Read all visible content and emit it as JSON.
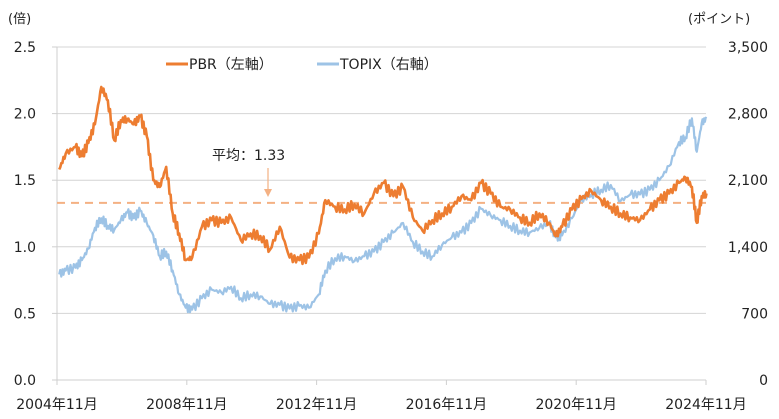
{
  "chart_data": {
    "type": "line",
    "title": "",
    "left_axis": {
      "unit_label": "(倍)",
      "ylim": [
        0,
        2.5
      ],
      "ticks": [
        "0.0",
        "0.5",
        "1.0",
        "1.5",
        "2.0",
        "2.5"
      ]
    },
    "right_axis": {
      "unit_label": "(ポイント)",
      "ylim": [
        0,
        3500
      ],
      "ticks": [
        "0",
        "700",
        "1,400",
        "2,100",
        "2,800",
        "3,500"
      ]
    },
    "x_axis": {
      "range": [
        "2004-11",
        "2024-11"
      ],
      "tick_labels": [
        "2004年11月",
        "2008年11月",
        "2012年11月",
        "2016年11月",
        "2020年11月",
        "2024年11月"
      ]
    },
    "grid": true,
    "legend_position": "top",
    "legend": [
      {
        "name": "PBR（左軸）",
        "color": "#ED7D31"
      },
      {
        "name": "TOPIX（右軸）",
        "color": "#9DC3E6"
      }
    ],
    "annotation": {
      "text": "平均：1.33",
      "value": 1.33,
      "color": "#F4B183"
    },
    "x": [
      2004.9,
      2005.1,
      2005.4,
      2005.6,
      2005.8,
      2006.0,
      2006.2,
      2006.4,
      2006.6,
      2006.8,
      2007.0,
      2007.2,
      2007.4,
      2007.6,
      2007.8,
      2008.0,
      2008.2,
      2008.4,
      2008.6,
      2008.8,
      2009.0,
      2009.3,
      2009.6,
      2009.9,
      2010.2,
      2010.5,
      2010.8,
      2011.1,
      2011.4,
      2011.7,
      2012.0,
      2012.3,
      2012.6,
      2012.9,
      2013.1,
      2013.4,
      2013.7,
      2014.0,
      2014.3,
      2014.6,
      2014.9,
      2015.2,
      2015.5,
      2015.8,
      2016.1,
      2016.4,
      2016.7,
      2017.0,
      2017.3,
      2017.6,
      2017.9,
      2018.2,
      2018.5,
      2018.8,
      2019.1,
      2019.4,
      2019.7,
      2020.0,
      2020.2,
      2020.4,
      2020.7,
      2021.0,
      2021.3,
      2021.6,
      2021.9,
      2022.2,
      2022.5,
      2022.8,
      2023.1,
      2023.4,
      2023.7,
      2024.0,
      2024.2,
      2024.4,
      2024.55,
      2024.7,
      2024.85
    ],
    "series": [
      {
        "name": "PBR",
        "axis": "left",
        "color": "#ED7D31",
        "values": [
          1.58,
          1.7,
          1.75,
          1.68,
          1.78,
          1.92,
          2.2,
          2.1,
          1.8,
          1.95,
          1.96,
          1.92,
          1.98,
          1.83,
          1.5,
          1.45,
          1.6,
          1.25,
          1.1,
          0.9,
          0.92,
          1.15,
          1.2,
          1.18,
          1.22,
          1.05,
          1.1,
          1.08,
          0.98,
          1.15,
          0.92,
          0.9,
          0.92,
          1.1,
          1.35,
          1.3,
          1.28,
          1.32,
          1.25,
          1.4,
          1.48,
          1.38,
          1.45,
          1.22,
          1.12,
          1.2,
          1.25,
          1.3,
          1.38,
          1.35,
          1.48,
          1.4,
          1.3,
          1.28,
          1.22,
          1.18,
          1.25,
          1.18,
          1.08,
          1.15,
          1.28,
          1.36,
          1.42,
          1.35,
          1.3,
          1.25,
          1.22,
          1.2,
          1.28,
          1.35,
          1.4,
          1.48,
          1.52,
          1.45,
          1.18,
          1.38,
          1.4
        ]
      },
      {
        "name": "TOPIX",
        "axis": "right",
        "color": "#9DC3E6",
        "values": [
          1110,
          1150,
          1180,
          1260,
          1380,
          1600,
          1700,
          1620,
          1580,
          1680,
          1760,
          1700,
          1780,
          1650,
          1520,
          1300,
          1350,
          1150,
          900,
          760,
          740,
          860,
          950,
          920,
          980,
          860,
          900,
          880,
          800,
          790,
          750,
          780,
          760,
          900,
          1150,
          1280,
          1300,
          1250,
          1300,
          1350,
          1450,
          1550,
          1650,
          1450,
          1350,
          1300,
          1420,
          1500,
          1550,
          1650,
          1800,
          1730,
          1680,
          1620,
          1570,
          1550,
          1600,
          1650,
          1500,
          1520,
          1700,
          1900,
          1950,
          2000,
          2050,
          1880,
          1950,
          1950,
          2000,
          2100,
          2250,
          2500,
          2550,
          2750,
          2400,
          2700,
          2750
        ]
      }
    ]
  }
}
